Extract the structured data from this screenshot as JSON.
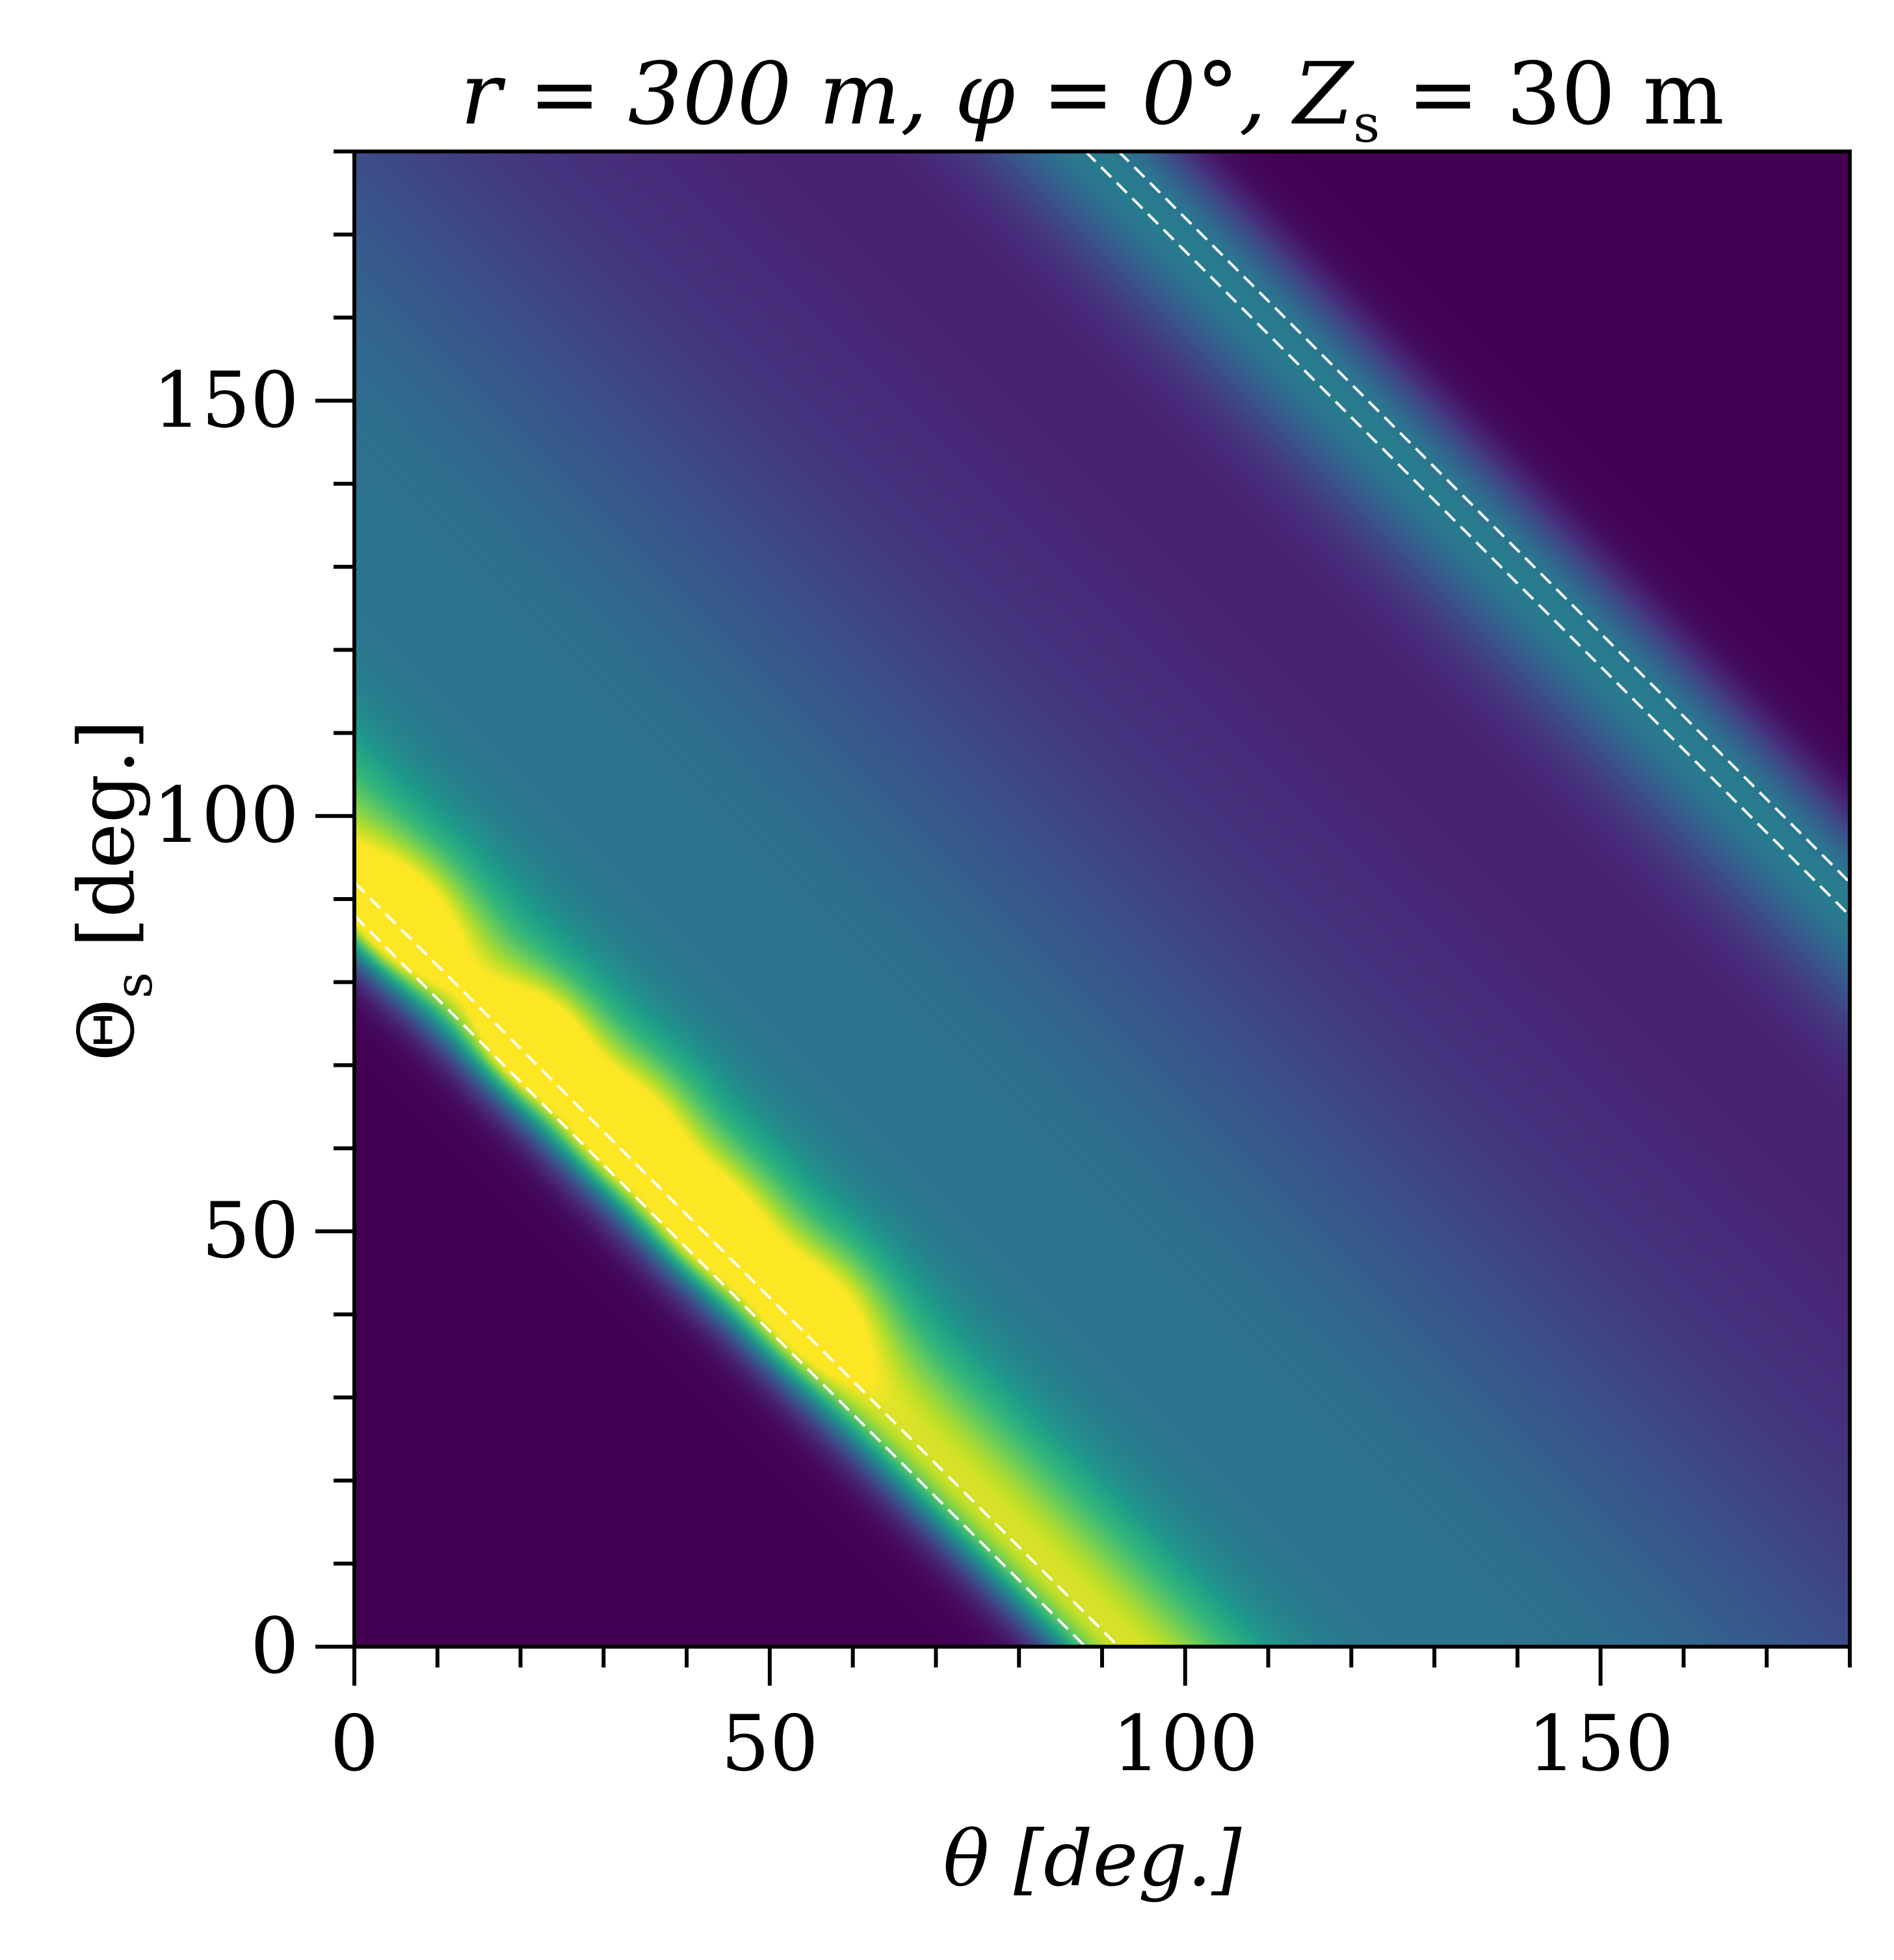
{
  "chart_data": {
    "type": "heatmap",
    "title": "r = 300 m, φ = 0°, Z",
    "title_subscript": "s",
    "title_tail": " = 30 m",
    "xlabel": "θ [deg.]",
    "ylabel_main": "Θ",
    "ylabel_subscript": "s",
    "ylabel_tail": " [deg.]",
    "xlim": [
      0,
      180
    ],
    "ylim": [
      0,
      180
    ],
    "x_ticks": [
      0,
      50,
      100,
      150
    ],
    "y_ticks": [
      0,
      50,
      100,
      150
    ],
    "x_tick_labels": [
      "0",
      "50",
      "100",
      "150"
    ],
    "y_tick_labels": [
      "0",
      "50",
      "100",
      "150"
    ],
    "minor_tick_step": 10,
    "colormap": "viridis",
    "colormap_stops": [
      "#440154",
      "#482878",
      "#3e4989",
      "#31688e",
      "#26828e",
      "#1f9e89",
      "#35b779",
      "#6ece58",
      "#b5de2b",
      "#fde725"
    ],
    "legend": "none",
    "grid": false,
    "intensity_model": {
      "description_units": "relative intensity 0-1",
      "background": 0.08,
      "ridges": [
        {
          "slope": -1,
          "intercept": 90,
          "peak": 0.75,
          "width_deg": 9
        },
        {
          "slope": -1,
          "intercept": 135,
          "peak": 0.3,
          "width_deg": 28
        },
        {
          "slope": -1,
          "intercept": 270,
          "peak": 0.35,
          "width_deg": 7
        }
      ],
      "hot_spots": [
        {
          "x": 3,
          "y": 86,
          "peak": 0.95,
          "radius_deg": 6
        },
        {
          "x": 21,
          "y": 72,
          "peak": 0.9,
          "radius_deg": 5
        },
        {
          "x": 32,
          "y": 62,
          "peak": 0.7,
          "radius_deg": 6
        },
        {
          "x": 42,
          "y": 50,
          "peak": 0.7,
          "radius_deg": 6
        },
        {
          "x": 55,
          "y": 40,
          "peak": 0.6,
          "radius_deg": 6
        }
      ],
      "dark_regions": [
        {
          "type": "below_line",
          "slope": -1,
          "intercept": 85,
          "value": 0.0
        },
        {
          "type": "above_line",
          "slope": -1,
          "intercept": 280,
          "value": 0.0
        }
      ]
    },
    "dashed_lines": [
      {
        "x1": 0,
        "y1": 92,
        "x2": 92,
        "y2": 0
      },
      {
        "x1": 0,
        "y1": 88,
        "x2": 88,
        "y2": 0
      },
      {
        "x1": 88,
        "y1": 180,
        "x2": 180,
        "y2": 88
      },
      {
        "x1": 92,
        "y1": 180,
        "x2": 180,
        "y2": 92
      }
    ],
    "dashed_line_color": "#ffffff"
  }
}
